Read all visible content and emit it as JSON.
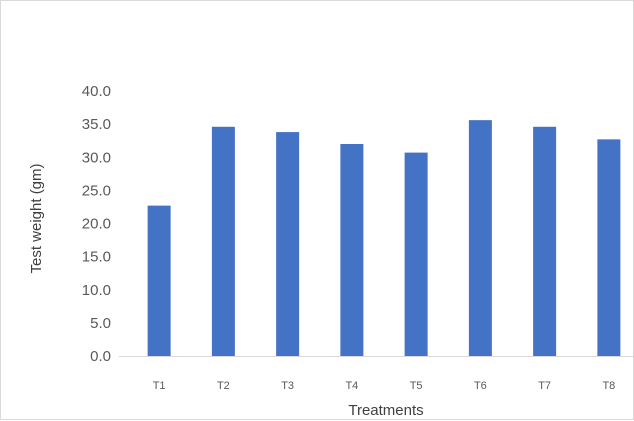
{
  "chart_data": {
    "type": "bar",
    "categories": [
      "T1",
      "T2",
      "T3",
      "T4",
      "T5",
      "T6",
      "T7",
      "T8"
    ],
    "values": [
      22.7,
      34.6,
      33.8,
      32.0,
      30.7,
      35.6,
      34.6,
      32.7
    ],
    "title": "",
    "xlabel": "Treatments",
    "ylabel": "Test weight (gm)",
    "ylim": [
      0,
      40
    ],
    "y_tick_step": 5,
    "y_tick_labels": [
      "0.0",
      "5.0",
      "10.0",
      "15.0",
      "20.0",
      "25.0",
      "30.0",
      "35.0",
      "40.0"
    ],
    "grid": false,
    "legend": "none",
    "bar_color": "#4472c4",
    "axis_color": "#d9d9d9"
  }
}
